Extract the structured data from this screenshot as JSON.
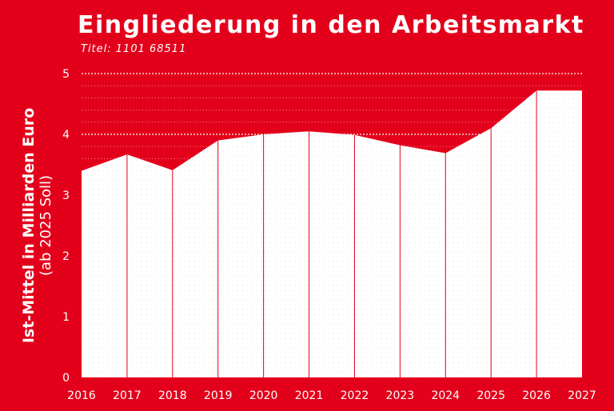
{
  "header": {
    "title": "Eingliederung in den Arbeitsmarkt",
    "subtitle": "Titel: 1101 68511"
  },
  "axis": {
    "ylabel_line1": "Ist-Mittel in Milliarden Euro",
    "ylabel_line2": "(ab 2025 Soll)"
  },
  "colors": {
    "background": "#E3001B",
    "area": "#FFFFFF",
    "divider": "#E3001B"
  },
  "chart_data": {
    "type": "area",
    "x": [
      "2016",
      "2017",
      "2018",
      "2019",
      "2020",
      "2021",
      "2022",
      "2023",
      "2024",
      "2025",
      "2026",
      "2027"
    ],
    "values": [
      3.4,
      3.67,
      3.41,
      3.9,
      4.0,
      4.05,
      3.99,
      3.82,
      3.69,
      4.1,
      4.72,
      4.72
    ],
    "xlabel": "",
    "ylabel": "Ist-Mittel in Milliarden Euro (ab 2025 Soll)",
    "ylim": [
      0,
      5
    ],
    "yticks": [
      0,
      1,
      2,
      3,
      4,
      5
    ],
    "grid": true
  }
}
